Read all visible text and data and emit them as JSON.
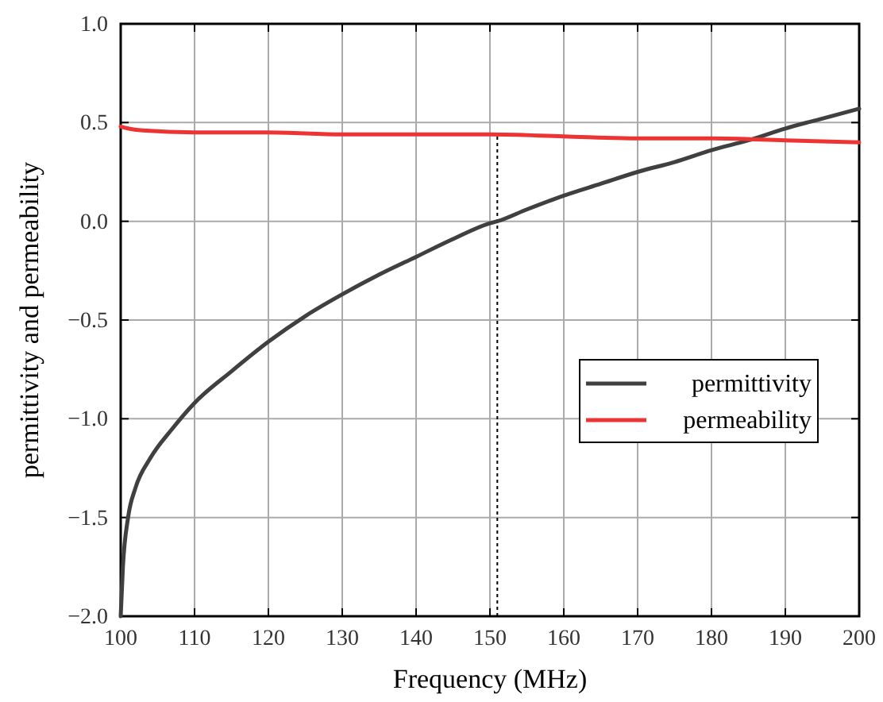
{
  "chart_data": {
    "type": "line",
    "xlabel": "Frequency (MHz)",
    "ylabel": "permittivity and permeability",
    "xlim": [
      100,
      200
    ],
    "xticks": [
      100,
      110,
      120,
      130,
      140,
      150,
      160,
      170,
      180,
      190,
      200
    ],
    "ylim": [
      -2.0,
      1.0
    ],
    "yticks": [
      {
        "value": -2,
        "label": "−2.0"
      },
      {
        "value": -1.5,
        "label": "−1.5"
      },
      {
        "value": -1,
        "label": "−1.0"
      },
      {
        "value": -0.5,
        "label": "−0.5"
      },
      {
        "value": 0,
        "label": "0.0"
      },
      {
        "value": 0.5,
        "label": "0.5"
      },
      {
        "value": 1,
        "label": "1.0"
      }
    ],
    "grid": true,
    "legend": "right",
    "line_style": "solid",
    "ref_lines": [
      {
        "axis": "x",
        "value": 151,
        "label": null,
        "color": "#000000",
        "line_style": "dotted"
      }
    ],
    "series": [
      {
        "name": "permittivity",
        "color": "#404040",
        "x": [
          100,
          100.3,
          101,
          102,
          104,
          107,
          110,
          115,
          120,
          125,
          130,
          135,
          140,
          145,
          150,
          151,
          155,
          160,
          165,
          170,
          175,
          180,
          185,
          190,
          195,
          200
        ],
        "values": [
          -2.0,
          -1.75,
          -1.5,
          -1.35,
          -1.2,
          -1.05,
          -0.92,
          -0.76,
          -0.61,
          -0.48,
          -0.37,
          -0.27,
          -0.18,
          -0.09,
          -0.01,
          0.0,
          0.06,
          0.13,
          0.19,
          0.25,
          0.3,
          0.36,
          0.41,
          0.47,
          0.52,
          0.57
        ]
      },
      {
        "name": "permeability",
        "color": "#ee3333",
        "x": [
          100,
          101,
          103,
          110,
          120,
          130,
          140,
          150,
          160,
          170,
          180,
          190,
          200
        ],
        "values": [
          0.48,
          0.47,
          0.46,
          0.45,
          0.45,
          0.44,
          0.44,
          0.44,
          0.43,
          0.42,
          0.42,
          0.41,
          0.4
        ]
      }
    ]
  }
}
